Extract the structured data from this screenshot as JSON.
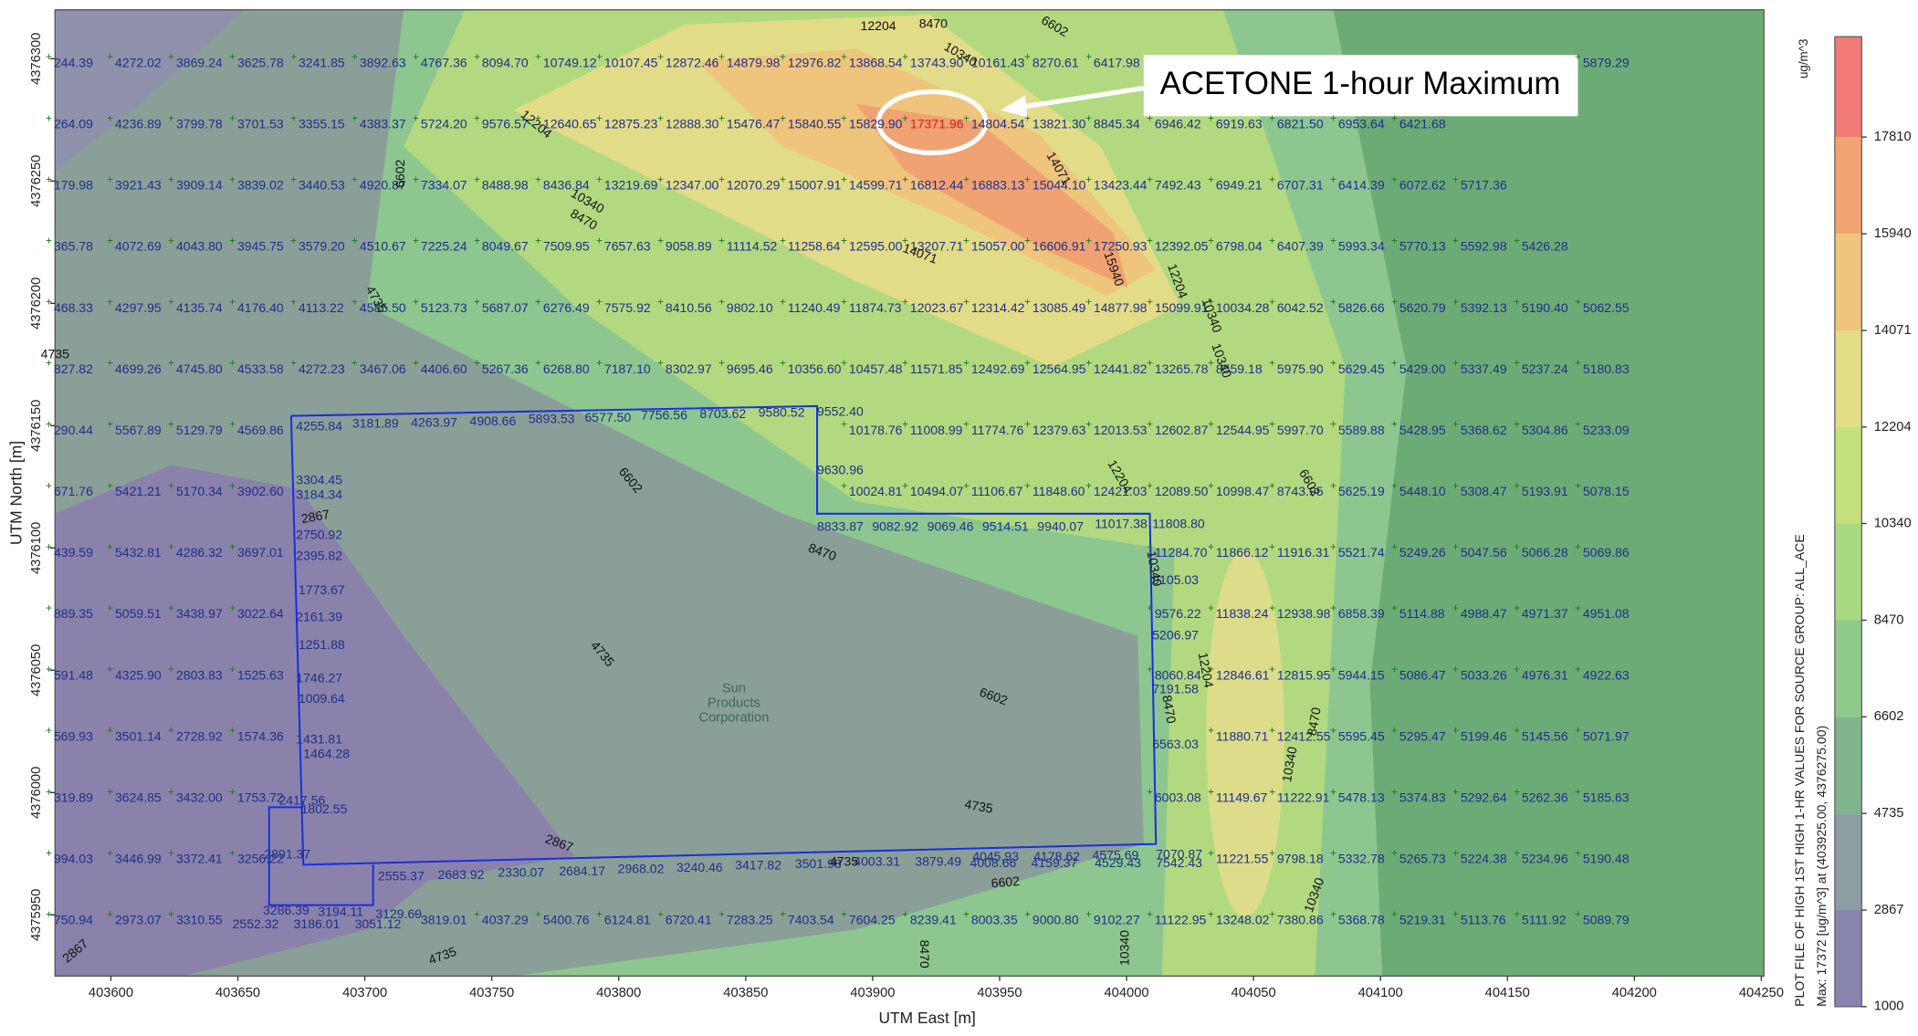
{
  "map": {
    "x_label": "UTM East [m]",
    "y_label": "UTM North [m]",
    "xlim": [
      403578,
      404251
    ],
    "xticks": [
      403600,
      403650,
      403700,
      403750,
      403800,
      403850,
      403900,
      403950,
      404000,
      404050,
      404100,
      404150,
      404200,
      404250
    ],
    "ylim": [
      4375925,
      4376320
    ],
    "yticks": [
      4375950,
      4376000,
      4376050,
      4376100,
      4376150,
      4376200,
      4376250,
      4376300
    ],
    "annotation": "ACETONE 1-hour Maximum",
    "facility_label": [
      "Sun",
      "Products",
      "Corporation"
    ],
    "receptor_rows": [
      [
        "244.39",
        "4272.02",
        "3869.24",
        "3625.78",
        "3241.85",
        "3892.63",
        "4767.36",
        "8094.70",
        "10749.12",
        "10107.45",
        "12872.46",
        "14879.98",
        "12976.82",
        "13868.54",
        "13743.90",
        "10161.43",
        "8270.61",
        "6417.98",
        null,
        null,
        null,
        null,
        null,
        null,
        null,
        "5879.29"
      ],
      [
        "264.09",
        "4236.89",
        "3799.78",
        "3701.53",
        "3355.15",
        "4383.37",
        "5724.20",
        "9576.57",
        "12640.65",
        "12875.23",
        "12888.30",
        "15476.47",
        "15840.55",
        "15829.90",
        "17371.96",
        "14804.54",
        "13821.30",
        "8845.34",
        "6946.42",
        "6919.63",
        "6821.50",
        "6953.64",
        "6421.68"
      ],
      [
        "179.98",
        "3921.43",
        "3909.14",
        "3839.02",
        "3440.53",
        "4920.87",
        "7334.07",
        "8488.98",
        "8436.84",
        "13219.69",
        "12347.00",
        "12070.29",
        "15007.91",
        "14599.71",
        "16812.44",
        "16883.13",
        "15044.10",
        "13423.44",
        "7492.43",
        "6949.21",
        "6707.31",
        "6414.39",
        "6072.62",
        "5717.36"
      ],
      [
        "365.78",
        "4072.69",
        "4043.80",
        "3945.75",
        "3579.20",
        "4510.67",
        "7225.24",
        "8049.67",
        "7509.95",
        "7657.63",
        "9058.89",
        "11114.52",
        "11258.64",
        "12595.00",
        "13207.71",
        "15057.00",
        "16606.91",
        "17250.93",
        "12392.05",
        "6798.04",
        "6407.39",
        "5993.34",
        "5770.13",
        "5592.98",
        "5426.28"
      ],
      [
        "468.33",
        "4297.95",
        "4135.74",
        "4176.40",
        "4113.22",
        "4585.50",
        "5123.73",
        "5687.07",
        "6276.49",
        "7575.92",
        "8410.56",
        "9802.10",
        "11240.49",
        "11874.73",
        "12023.67",
        "12314.42",
        "13085.49",
        "14877.98",
        "15099.91",
        "10034.28",
        "6042.52",
        "5826.66",
        "5620.79",
        "5392.13",
        "5190.40",
        "5062.55"
      ],
      [
        "827.82",
        "4699.26",
        "4745.80",
        "4533.58",
        "4272.23",
        "3467.06",
        "4406.60",
        "5267.36",
        "6268.80",
        "7187.10",
        "8302.97",
        "9695.46",
        "10356.60",
        "10457.48",
        "11571.85",
        "12492.69",
        "12564.95",
        "12441.82",
        "13265.78",
        "8559.18",
        "5975.90",
        "5629.45",
        "5429.00",
        "5337.49",
        "5237.24",
        "5180.83"
      ],
      [
        "290.44",
        "5567.89",
        "5129.79",
        "4569.86",
        null,
        null,
        null,
        null,
        null,
        null,
        null,
        null,
        null,
        "10178.76",
        "11008.99",
        "11774.76",
        "12379.63",
        "12013.53",
        "12602.87",
        "12544.95",
        "5997.70",
        "5589.88",
        "5428.95",
        "5368.62",
        "5304.86",
        "5233.09"
      ],
      [
        "671.76",
        "5421.21",
        "5170.34",
        "3902.60",
        null,
        null,
        null,
        null,
        null,
        null,
        null,
        null,
        null,
        "10024.81",
        "10494.07",
        "11106.67",
        "11848.60",
        "12421.03",
        "12089.50",
        "10998.47",
        "8743.95",
        "5625.19",
        "5448.10",
        "5308.47",
        "5193.91",
        "5078.15"
      ],
      [
        "439.59",
        "5432.81",
        "4286.32",
        "3697.01",
        null,
        null,
        null,
        null,
        null,
        null,
        null,
        null,
        null,
        null,
        null,
        null,
        null,
        null,
        "11284.70",
        "11866.12",
        "11916.31",
        "5521.74",
        "5249.26",
        "5047.56",
        "5066.28",
        "5069.86"
      ],
      [
        "889.35",
        "5059.51",
        "3438.97",
        "3022.64",
        null,
        null,
        null,
        null,
        null,
        null,
        null,
        null,
        null,
        null,
        null,
        null,
        null,
        null,
        "9576.22",
        "11838.24",
        "12938.98",
        "6858.39",
        "5114.88",
        "4988.47",
        "4971.37",
        "4951.08"
      ],
      [
        "591.48",
        "4325.90",
        "2803.83",
        "1525.63",
        null,
        null,
        null,
        null,
        null,
        null,
        null,
        null,
        null,
        null,
        null,
        null,
        null,
        null,
        "8060.84",
        "12846.61",
        "12815.95",
        "5944.15",
        "5086.47",
        "5033.26",
        "4976.31",
        "4922.63"
      ],
      [
        "569.93",
        "3501.14",
        "2728.92",
        "1574.36",
        null,
        null,
        null,
        null,
        null,
        null,
        null,
        null,
        null,
        null,
        null,
        null,
        null,
        null,
        null,
        "11880.71",
        "12412.55",
        "5595.45",
        "5295.47",
        "5199.46",
        "5145.56",
        "5071.97"
      ],
      [
        "319.89",
        "3624.85",
        "3432.00",
        "1753.72",
        null,
        null,
        null,
        null,
        null,
        null,
        null,
        null,
        null,
        null,
        null,
        null,
        null,
        null,
        "6003.08",
        "11149.67",
        "11222.91",
        "5478.13",
        "5374.83",
        "5292.64",
        "5262.36",
        "5185.63"
      ],
      [
        "994.03",
        "3446.99",
        "3372.41",
        "3256.22",
        null,
        null,
        null,
        null,
        null,
        null,
        null,
        null,
        null,
        null,
        null,
        null,
        null,
        null,
        null,
        "11221.55",
        "9798.18",
        "5332.78",
        "5265.73",
        "5224.38",
        "5234.96",
        "5190.48"
      ],
      [
        "750.94",
        "2973.07",
        "3310.55",
        null,
        null,
        null,
        "3819.01",
        "4037.29",
        "5400.76",
        "6124.81",
        "6720.41",
        "7283.25",
        "7403.54",
        "7604.25",
        "8239.41",
        "8003.35",
        "9000.80",
        "9102.27",
        "11122.95",
        "13248.02",
        "7380.86",
        "5368.78",
        "5219.31",
        "5113.76",
        "5111.92",
        "5089.79"
      ]
    ],
    "boundary_receptors": [
      "4255.84",
      "3181.89",
      "4263.97",
      "4908.66",
      "5893.53",
      "6577.50",
      "7756.56",
      "8703.62",
      "9580.52",
      "9552.40",
      "3304.45",
      "3184.34",
      "2750.92",
      "2395.82",
      "1773.67",
      "2161.39",
      "1251.88",
      "1746.27",
      "1009.64",
      "1431.81",
      "1464.28",
      "2417.56",
      "1802.55",
      "9630.96",
      "8833.87",
      "9082.92",
      "9069.46",
      "9514.51",
      "9940.07",
      "11017.38",
      "11808.80",
      "9105.03",
      "5206.97",
      "7191.58",
      "6563.03",
      "2891.37",
      "2555.37",
      "2683.92",
      "2330.07",
      "2684.17",
      "2968.02",
      "3240.46",
      "3417.82",
      "3501.98",
      "4003.31",
      "3879.49",
      "4045.93",
      "4008.66",
      "4178.62",
      "4159.37",
      "4575.69",
      "4529.43",
      "7070.87",
      "7542.43",
      "3286.39",
      "3194.11",
      "3129.69",
      "2552.32",
      "3186.01",
      "3051.12"
    ],
    "contour_labels": [
      12204,
      8470,
      6602,
      10340,
      12204,
      10340,
      8470,
      14071,
      14071,
      15940,
      6602,
      4735,
      12204,
      10340,
      10340,
      4735,
      6602,
      12204,
      6602,
      8470,
      10340,
      2867,
      4735,
      6602,
      12204,
      8470,
      8470,
      10340,
      4735,
      2867,
      6602,
      10340,
      4735,
      2867,
      8470,
      10340,
      4735
    ]
  },
  "colorbar": {
    "unit": "ug/m^3",
    "lim": [
      1000,
      19750
    ],
    "ticks": [
      1000,
      2867,
      4735,
      6602,
      8470,
      10340,
      12204,
      14071,
      15940,
      17810
    ],
    "colors": [
      "#8884b0",
      "#8c9ea2",
      "#7fb48c",
      "#8fca8a",
      "#a9d97e",
      "#c3e07c",
      "#e2dc86",
      "#f0c47c",
      "#f0a472",
      "#f07a76"
    ],
    "caption": "PLOT FILE OF HIGH 1ST HIGH 1-HR VALUES FOR SOURCE GROUP: ALL_ACE",
    "max_caption": "Max:  17372  [ug/m^3]  at  (403925.00, 4376275.00)"
  }
}
